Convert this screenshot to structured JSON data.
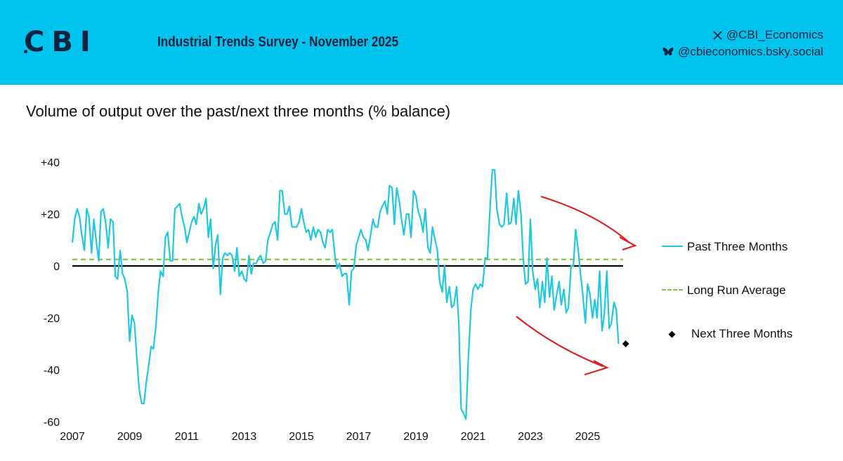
{
  "header": {
    "logo_text": "CBI",
    "title": "Industrial Trends Survey - November 2025",
    "social": [
      {
        "icon": "x-logo-icon",
        "handle": "@CBI_Economics"
      },
      {
        "icon": "butterfly-icon",
        "handle": "@cbieconomics.bsky.social"
      }
    ],
    "colors": {
      "band": "#00c4ee",
      "text": "#0d2240"
    }
  },
  "chart_data": {
    "type": "line",
    "title": "Volume of output over the past/next three months (% balance)",
    "xlabel": "",
    "ylabel": "",
    "xlim": [
      2007,
      2026.6
    ],
    "ylim": [
      -60,
      40
    ],
    "y_ticks": [
      {
        "value": 40,
        "label": "+40"
      },
      {
        "value": 20,
        "label": "+20"
      },
      {
        "value": 0,
        "label": "0"
      },
      {
        "value": -20,
        "label": "-20"
      },
      {
        "value": -40,
        "label": "-40"
      },
      {
        "value": -60,
        "label": "-60"
      }
    ],
    "x_ticks": [
      {
        "value": 2007,
        "label": "2007"
      },
      {
        "value": 2009,
        "label": "2009"
      },
      {
        "value": 2011,
        "label": "2011"
      },
      {
        "value": 2013,
        "label": "2013"
      },
      {
        "value": 2015,
        "label": "2015"
      },
      {
        "value": 2017,
        "label": "2017"
      },
      {
        "value": 2019,
        "label": "2019"
      },
      {
        "value": 2021,
        "label": "2021"
      },
      {
        "value": 2023,
        "label": "2023"
      },
      {
        "value": 2025,
        "label": "2025"
      }
    ],
    "series": [
      {
        "name": "Past Three Months",
        "color": "#1ec8de",
        "points": [
          [
            2007.0,
            9
          ],
          [
            2007.08,
            18
          ],
          [
            2007.17,
            22
          ],
          [
            2007.25,
            19
          ],
          [
            2007.33,
            12
          ],
          [
            2007.42,
            6
          ],
          [
            2007.5,
            22
          ],
          [
            2007.58,
            19
          ],
          [
            2007.67,
            5
          ],
          [
            2007.75,
            18
          ],
          [
            2007.83,
            10
          ],
          [
            2007.92,
            2
          ],
          [
            2008.0,
            21
          ],
          [
            2008.08,
            22
          ],
          [
            2008.17,
            16
          ],
          [
            2008.25,
            7
          ],
          [
            2008.33,
            18
          ],
          [
            2008.42,
            17
          ],
          [
            2008.5,
            -4
          ],
          [
            2008.58,
            -5
          ],
          [
            2008.67,
            6
          ],
          [
            2008.75,
            -3
          ],
          [
            2008.83,
            -5
          ],
          [
            2008.92,
            -10
          ],
          [
            2009.0,
            -29
          ],
          [
            2009.08,
            -19
          ],
          [
            2009.17,
            -22
          ],
          [
            2009.25,
            -35
          ],
          [
            2009.33,
            -47
          ],
          [
            2009.42,
            -53
          ],
          [
            2009.5,
            -53
          ],
          [
            2009.58,
            -45
          ],
          [
            2009.67,
            -38
          ],
          [
            2009.75,
            -31
          ],
          [
            2009.83,
            -32
          ],
          [
            2009.92,
            -23
          ],
          [
            2010.0,
            -10
          ],
          [
            2010.08,
            -2
          ],
          [
            2010.17,
            -4
          ],
          [
            2010.25,
            11
          ],
          [
            2010.33,
            13
          ],
          [
            2010.42,
            2
          ],
          [
            2010.5,
            2
          ],
          [
            2010.58,
            22
          ],
          [
            2010.67,
            23
          ],
          [
            2010.75,
            24
          ],
          [
            2010.83,
            19
          ],
          [
            2010.92,
            15
          ],
          [
            2011.0,
            9
          ],
          [
            2011.08,
            13
          ],
          [
            2011.17,
            17
          ],
          [
            2011.25,
            19
          ],
          [
            2011.33,
            16
          ],
          [
            2011.42,
            24
          ],
          [
            2011.5,
            20
          ],
          [
            2011.58,
            22
          ],
          [
            2011.67,
            26
          ],
          [
            2011.75,
            11
          ],
          [
            2011.83,
            18
          ],
          [
            2011.92,
            -1
          ],
          [
            2012.0,
            8
          ],
          [
            2012.08,
            12
          ],
          [
            2012.17,
            -11
          ],
          [
            2012.25,
            3
          ],
          [
            2012.33,
            5
          ],
          [
            2012.42,
            4
          ],
          [
            2012.5,
            5
          ],
          [
            2012.58,
            4
          ],
          [
            2012.67,
            -2
          ],
          [
            2012.75,
            7
          ],
          [
            2012.83,
            -4
          ],
          [
            2012.92,
            -2
          ],
          [
            2013.0,
            -5
          ],
          [
            2013.08,
            -6
          ],
          [
            2013.17,
            4
          ],
          [
            2013.25,
            -3
          ],
          [
            2013.33,
            1
          ],
          [
            2013.42,
            1
          ],
          [
            2013.5,
            3
          ],
          [
            2013.58,
            4
          ],
          [
            2013.67,
            1
          ],
          [
            2013.75,
            2
          ],
          [
            2013.83,
            10
          ],
          [
            2013.92,
            13
          ],
          [
            2014.0,
            16
          ],
          [
            2014.08,
            17
          ],
          [
            2014.17,
            10
          ],
          [
            2014.25,
            29
          ],
          [
            2014.33,
            29
          ],
          [
            2014.42,
            20
          ],
          [
            2014.5,
            20
          ],
          [
            2014.58,
            23
          ],
          [
            2014.67,
            15
          ],
          [
            2014.75,
            15
          ],
          [
            2014.83,
            15
          ],
          [
            2014.92,
            17
          ],
          [
            2015.0,
            22
          ],
          [
            2015.08,
            17
          ],
          [
            2015.17,
            13
          ],
          [
            2015.25,
            14
          ],
          [
            2015.33,
            10
          ],
          [
            2015.42,
            15
          ],
          [
            2015.5,
            11
          ],
          [
            2015.58,
            14
          ],
          [
            2015.67,
            13
          ],
          [
            2015.75,
            9
          ],
          [
            2015.83,
            7
          ],
          [
            2015.92,
            14
          ],
          [
            2016.0,
            13
          ],
          [
            2016.08,
            14
          ],
          [
            2016.17,
            4
          ],
          [
            2016.25,
            -1
          ],
          [
            2016.33,
            1
          ],
          [
            2016.42,
            -4
          ],
          [
            2016.5,
            -3
          ],
          [
            2016.58,
            -3
          ],
          [
            2016.67,
            -15
          ],
          [
            2016.75,
            -2
          ],
          [
            2016.83,
            -1
          ],
          [
            2016.92,
            8
          ],
          [
            2017.0,
            11
          ],
          [
            2017.08,
            14
          ],
          [
            2017.17,
            11
          ],
          [
            2017.25,
            10
          ],
          [
            2017.33,
            6
          ],
          [
            2017.42,
            12
          ],
          [
            2017.5,
            18
          ],
          [
            2017.58,
            15
          ],
          [
            2017.67,
            15
          ],
          [
            2017.75,
            21
          ],
          [
            2017.83,
            23
          ],
          [
            2017.92,
            25
          ],
          [
            2018.0,
            20
          ],
          [
            2018.08,
            31
          ],
          [
            2018.17,
            30
          ],
          [
            2018.25,
            16
          ],
          [
            2018.33,
            30
          ],
          [
            2018.42,
            25
          ],
          [
            2018.5,
            18
          ],
          [
            2018.58,
            12
          ],
          [
            2018.67,
            20
          ],
          [
            2018.75,
            20
          ],
          [
            2018.83,
            11
          ],
          [
            2018.92,
            29
          ],
          [
            2019.0,
            27
          ],
          [
            2019.08,
            21
          ],
          [
            2019.17,
            18
          ],
          [
            2019.25,
            13
          ],
          [
            2019.33,
            22
          ],
          [
            2019.42,
            7
          ],
          [
            2019.5,
            5
          ],
          [
            2019.58,
            15
          ],
          [
            2019.67,
            10
          ],
          [
            2019.75,
            6
          ],
          [
            2019.83,
            -6
          ],
          [
            2019.92,
            -10
          ],
          [
            2020.0,
            0
          ],
          [
            2020.08,
            -14
          ],
          [
            2020.17,
            -8
          ],
          [
            2020.25,
            -16
          ],
          [
            2020.33,
            -15
          ],
          [
            2020.42,
            -8
          ],
          [
            2020.5,
            -22
          ],
          [
            2020.58,
            -55
          ],
          [
            2020.67,
            -57
          ],
          [
            2020.75,
            -59
          ],
          [
            2020.83,
            -36
          ],
          [
            2020.92,
            -17
          ],
          [
            2021.0,
            -9
          ],
          [
            2021.08,
            -7
          ],
          [
            2021.17,
            -9
          ],
          [
            2021.25,
            -7
          ],
          [
            2021.33,
            -8
          ],
          [
            2021.42,
            3
          ],
          [
            2021.5,
            3
          ],
          [
            2021.58,
            20
          ],
          [
            2021.67,
            37
          ],
          [
            2021.75,
            37
          ],
          [
            2021.83,
            22
          ],
          [
            2021.92,
            16
          ],
          [
            2022.0,
            15
          ],
          [
            2022.08,
            16
          ],
          [
            2022.17,
            28
          ],
          [
            2022.25,
            16
          ],
          [
            2022.33,
            17
          ],
          [
            2022.42,
            26
          ],
          [
            2022.5,
            16
          ],
          [
            2022.58,
            29
          ],
          [
            2022.67,
            20
          ],
          [
            2022.75,
            3
          ],
          [
            2022.83,
            -7
          ],
          [
            2022.92,
            -6
          ],
          [
            2023.0,
            18
          ],
          [
            2023.08,
            -2
          ],
          [
            2023.17,
            -9
          ],
          [
            2023.25,
            -5
          ],
          [
            2023.33,
            -16
          ],
          [
            2023.42,
            -6
          ],
          [
            2023.5,
            -14
          ],
          [
            2023.58,
            3
          ],
          [
            2023.67,
            -12
          ],
          [
            2023.75,
            -4
          ],
          [
            2023.83,
            -17
          ],
          [
            2023.92,
            -11
          ],
          [
            2024.0,
            -6
          ],
          [
            2024.08,
            -15
          ],
          [
            2024.17,
            -9
          ],
          [
            2024.25,
            -18
          ],
          [
            2024.33,
            -16
          ],
          [
            2024.42,
            0
          ],
          [
            2024.5,
            0
          ],
          [
            2024.58,
            14
          ],
          [
            2024.67,
            6
          ],
          [
            2024.75,
            -3
          ],
          [
            2024.83,
            -11
          ],
          [
            2024.92,
            -22
          ],
          [
            2025.0,
            -7
          ],
          [
            2025.08,
            -11
          ],
          [
            2025.17,
            -20
          ],
          [
            2025.25,
            -13
          ],
          [
            2025.33,
            -20
          ],
          [
            2025.42,
            -2
          ],
          [
            2025.5,
            -25
          ],
          [
            2025.58,
            -19
          ],
          [
            2025.67,
            -2
          ],
          [
            2025.75,
            -24
          ],
          [
            2025.83,
            -22
          ],
          [
            2025.92,
            -14
          ],
          [
            2026.0,
            -17
          ],
          [
            2026.08,
            -30
          ]
        ]
      },
      {
        "name": "Long Run Average",
        "color": "#88c540",
        "style": "dashed",
        "value": 2.5
      },
      {
        "name": "Next Three Months",
        "color": "#000000",
        "marker": "diamond",
        "points": [
          [
            2026.33,
            -30
          ]
        ]
      }
    ],
    "zero_line": 0,
    "legend": "right"
  }
}
